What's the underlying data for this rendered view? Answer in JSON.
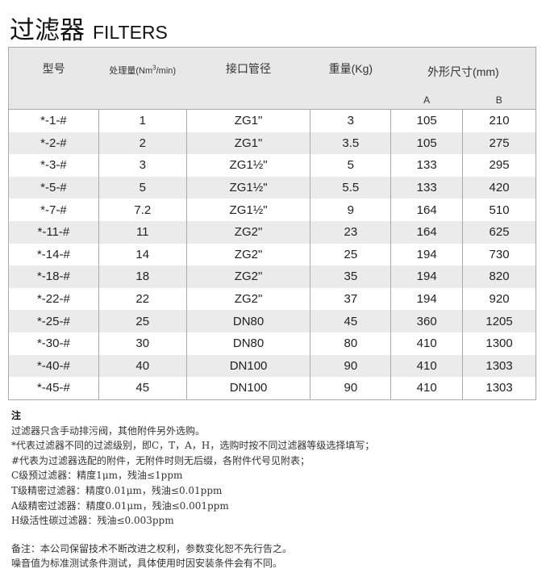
{
  "title": {
    "cn": "过滤器",
    "en": "FILTERS"
  },
  "table": {
    "headers": {
      "model": "型号",
      "flow_prefix": "处理量(Nm",
      "flow_sup": "3",
      "flow_suffix": "/min)",
      "port": "接口管径",
      "weight": "重量(Kg)",
      "dims": "外形尺寸(mm)",
      "dim_a": "A",
      "dim_b": "B"
    },
    "rows": [
      [
        "*-1-#",
        "1",
        "ZG1\"",
        "3",
        "105",
        "210"
      ],
      [
        "*-2-#",
        "2",
        "ZG1\"",
        "3.5",
        "105",
        "275"
      ],
      [
        "*-3-#",
        "3",
        "ZG1½\"",
        "5",
        "133",
        "295"
      ],
      [
        "*-5-#",
        "5",
        "ZG1½\"",
        "5.5",
        "133",
        "420"
      ],
      [
        "*-7-#",
        "7.2",
        "ZG1½\"",
        "9",
        "164",
        "510"
      ],
      [
        "*-11-#",
        "11",
        "ZG2\"",
        "23",
        "164",
        "625"
      ],
      [
        "*-14-#",
        "14",
        "ZG2\"",
        "25",
        "194",
        "730"
      ],
      [
        "*-18-#",
        "18",
        "ZG2\"",
        "35",
        "194",
        "820"
      ],
      [
        "*-22-#",
        "22",
        "ZG2\"",
        "37",
        "194",
        "920"
      ],
      [
        "*-25-#",
        "25",
        "DN80",
        "45",
        "360",
        "1205"
      ],
      [
        "*-30-#",
        "30",
        "DN80",
        "80",
        "410",
        "1300"
      ],
      [
        "*-40-#",
        "40",
        "DN100",
        "90",
        "410",
        "1303"
      ],
      [
        "*-45-#",
        "45",
        "DN100",
        "90",
        "410",
        "1303"
      ]
    ]
  },
  "notes": {
    "heading": "注",
    "lines": [
      "过滤器只含手动排污阀，其他附件另外选购。",
      "*代表过滤器不同的过滤级别，即C，T，A，H，选购时按不同过滤器等级选择填写；",
      "#代表为过滤器选配的附件，无附件时则无后缀，各附件代号见附表；",
      "C级预过滤器：精度1μm，残油≤1ppm",
      "T级精密过滤器：精度0.01μm，残油≤0.01ppm",
      "A级精密过滤器：精度0.01μm，残油≤0.001ppm",
      "H级活性碳过滤器：残油≤0.003ppm"
    ],
    "remarks": [
      "备注：本公司保留技术不断改进之权利，参数变化恕不先行告之。",
      "噪音值为标准测试条件测试，具体使用时因安装条件会有不同。"
    ]
  }
}
